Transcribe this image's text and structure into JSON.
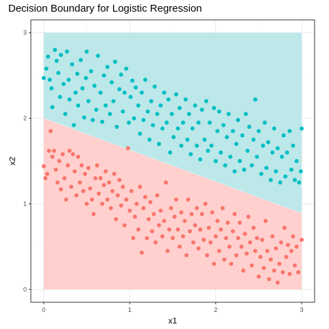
{
  "chart_data": {
    "type": "scatter",
    "title": "Decision Boundary for Logistic Regression",
    "xlabel": "x1",
    "ylabel": "x2",
    "xlim": [
      -0.15,
      3.15
    ],
    "ylim": [
      -0.15,
      3.15
    ],
    "x_ticks": [
      0,
      1,
      2,
      3
    ],
    "y_ticks": [
      0,
      1,
      2,
      3
    ],
    "grid": true,
    "legend": "none",
    "colors": {
      "class_0": "#f8766d",
      "class_1": "#00bfc4",
      "region_0": "#ffd0ce",
      "region_1": "#bce8ea",
      "panel_border": "#333333",
      "grid_major": "#ebebeb",
      "grid_minor": "#f5f5f5"
    },
    "boundary": {
      "intercept": 2.0,
      "slope": -0.37,
      "region_x": [
        0,
        3
      ],
      "region_y": [
        0,
        3
      ]
    },
    "series": [
      {
        "class": 1,
        "color": "#00bfc4",
        "points": [
          [
            0.0,
            2.47
          ],
          [
            0.03,
            2.58
          ],
          [
            0.05,
            2.72
          ],
          [
            0.07,
            2.45
          ],
          [
            0.09,
            2.35
          ],
          [
            0.1,
            2.13
          ],
          [
            0.13,
            2.8
          ],
          [
            0.15,
            2.67
          ],
          [
            0.17,
            2.53
          ],
          [
            0.19,
            2.25
          ],
          [
            0.2,
            2.74
          ],
          [
            0.23,
            2.4
          ],
          [
            0.25,
            2.05
          ],
          [
            0.27,
            2.78
          ],
          [
            0.29,
            2.45
          ],
          [
            0.3,
            2.22
          ],
          [
            0.33,
            2.63
          ],
          [
            0.35,
            1.92
          ],
          [
            0.37,
            2.3
          ],
          [
            0.39,
            2.52
          ],
          [
            0.4,
            2.15
          ],
          [
            0.43,
            2.68
          ],
          [
            0.45,
            2.35
          ],
          [
            0.47,
            2.01
          ],
          [
            0.49,
            2.47
          ],
          [
            0.5,
            2.78
          ],
          [
            0.52,
            2.2
          ],
          [
            0.55,
            2.55
          ],
          [
            0.57,
            1.98
          ],
          [
            0.59,
            2.38
          ],
          [
            0.61,
            2.1
          ],
          [
            0.63,
            2.73
          ],
          [
            0.66,
            2.3
          ],
          [
            0.68,
            1.96
          ],
          [
            0.7,
            2.5
          ],
          [
            0.72,
            2.15
          ],
          [
            0.74,
            2.6
          ],
          [
            0.77,
            2.05
          ],
          [
            0.79,
            2.42
          ],
          [
            0.81,
            2.2
          ],
          [
            0.83,
            2.66
          ],
          [
            0.85,
            1.9
          ],
          [
            0.88,
            2.34
          ],
          [
            0.9,
            2.51
          ],
          [
            0.92,
            2.08
          ],
          [
            0.94,
            2.3
          ],
          [
            0.96,
            2.58
          ],
          [
            0.99,
            1.95
          ],
          [
            1.01,
            2.25
          ],
          [
            1.03,
            2.44
          ],
          [
            1.05,
            2.0
          ],
          [
            1.07,
            2.36
          ],
          [
            1.1,
            2.15
          ],
          [
            1.12,
            1.82
          ],
          [
            1.14,
            2.3
          ],
          [
            1.16,
            1.98
          ],
          [
            1.18,
            2.45
          ],
          [
            1.21,
            2.08
          ],
          [
            1.23,
            1.75
          ],
          [
            1.25,
            2.2
          ],
          [
            1.27,
            1.92
          ],
          [
            1.29,
            2.37
          ],
          [
            1.32,
            2.05
          ],
          [
            1.34,
            1.7
          ],
          [
            1.36,
            2.15
          ],
          [
            1.38,
            1.88
          ],
          [
            1.4,
            2.3
          ],
          [
            1.43,
            1.95
          ],
          [
            1.45,
            2.22
          ],
          [
            1.47,
            1.6
          ],
          [
            1.49,
            2.05
          ],
          [
            1.51,
            1.78
          ],
          [
            1.54,
            2.28
          ],
          [
            1.56,
            1.88
          ],
          [
            1.58,
            2.12
          ],
          [
            1.6,
            1.68
          ],
          [
            1.62,
            1.95
          ],
          [
            1.65,
            2.22
          ],
          [
            1.67,
            1.75
          ],
          [
            1.69,
            2.05
          ],
          [
            1.71,
            1.58
          ],
          [
            1.73,
            1.88
          ],
          [
            1.76,
            2.15
          ],
          [
            1.78,
            1.68
          ],
          [
            1.8,
            1.95
          ],
          [
            1.82,
            1.52
          ],
          [
            1.84,
            2.1
          ],
          [
            1.87,
            1.75
          ],
          [
            1.89,
            2.2
          ],
          [
            1.91,
            1.62
          ],
          [
            1.93,
            1.95
          ],
          [
            1.95,
            1.68
          ],
          [
            1.98,
            2.12
          ],
          [
            2.0,
            1.5
          ],
          [
            2.02,
            1.85
          ],
          [
            2.04,
            2.08
          ],
          [
            2.06,
            1.6
          ],
          [
            2.09,
            1.92
          ],
          [
            2.11,
            1.45
          ],
          [
            2.13,
            1.78
          ],
          [
            2.15,
            2.05
          ],
          [
            2.17,
            1.55
          ],
          [
            2.2,
            1.85
          ],
          [
            2.22,
            1.38
          ],
          [
            2.24,
            1.7
          ],
          [
            2.26,
            1.98
          ],
          [
            2.28,
            1.5
          ],
          [
            2.31,
            1.8
          ],
          [
            2.33,
            1.4
          ],
          [
            2.35,
            2.05
          ],
          [
            2.37,
            1.62
          ],
          [
            2.39,
            1.9
          ],
          [
            2.42,
            1.45
          ],
          [
            2.44,
            1.75
          ],
          [
            2.46,
            2.22
          ],
          [
            2.48,
            1.55
          ],
          [
            2.5,
            1.85
          ],
          [
            2.53,
            1.35
          ],
          [
            2.55,
            1.68
          ],
          [
            2.57,
            1.95
          ],
          [
            2.59,
            1.42
          ],
          [
            2.61,
            1.72
          ],
          [
            2.64,
            1.28
          ],
          [
            2.66,
            1.6
          ],
          [
            2.68,
            1.88
          ],
          [
            2.7,
            1.38
          ],
          [
            2.72,
            1.65
          ],
          [
            2.75,
            1.25
          ],
          [
            2.77,
            1.55
          ],
          [
            2.79,
            1.8
          ],
          [
            2.81,
            1.32
          ],
          [
            2.83,
            1.6
          ],
          [
            2.86,
            1.85
          ],
          [
            2.88,
            1.4
          ],
          [
            2.9,
            1.68
          ],
          [
            2.92,
            1.28
          ],
          [
            2.94,
            1.5
          ],
          [
            2.97,
            1.25
          ],
          [
            2.99,
            1.38
          ],
          [
            3.0,
            1.88
          ]
        ]
      },
      {
        "class": 0,
        "color": "#f8766d",
        "points": [
          [
            0.0,
            1.44
          ],
          [
            0.02,
            1.3
          ],
          [
            0.04,
            1.35
          ],
          [
            0.06,
            1.62
          ],
          [
            0.08,
            1.85
          ],
          [
            0.1,
            1.55
          ],
          [
            0.12,
            1.62
          ],
          [
            0.14,
            1.4
          ],
          [
            0.16,
            1.25
          ],
          [
            0.18,
            1.5
          ],
          [
            0.2,
            1.17
          ],
          [
            0.22,
            1.58
          ],
          [
            0.24,
            1.3
          ],
          [
            0.26,
            1.05
          ],
          [
            0.28,
            1.45
          ],
          [
            0.3,
            1.62
          ],
          [
            0.32,
            1.2
          ],
          [
            0.34,
            1.58
          ],
          [
            0.36,
            1.38
          ],
          [
            0.38,
            1.1
          ],
          [
            0.4,
            1.55
          ],
          [
            0.42,
            1.25
          ],
          [
            0.44,
            1.45
          ],
          [
            0.46,
            1.15
          ],
          [
            0.48,
            1.35
          ],
          [
            0.5,
            1.0
          ],
          [
            0.52,
            1.42
          ],
          [
            0.54,
            1.18
          ],
          [
            0.56,
            1.05
          ],
          [
            0.58,
            0.88
          ],
          [
            0.6,
            1.3
          ],
          [
            0.62,
            1.45
          ],
          [
            0.64,
            1.12
          ],
          [
            0.66,
            1.3
          ],
          [
            0.68,
            1.0
          ],
          [
            0.7,
            1.22
          ],
          [
            0.72,
            1.38
          ],
          [
            0.74,
            1.05
          ],
          [
            0.76,
            1.25
          ],
          [
            0.78,
            0.95
          ],
          [
            0.8,
            1.15
          ],
          [
            0.82,
            1.35
          ],
          [
            0.84,
            0.82
          ],
          [
            0.86,
            1.1
          ],
          [
            0.88,
            1.28
          ],
          [
            0.9,
            0.98
          ],
          [
            0.92,
            1.2
          ],
          [
            0.94,
            0.75
          ],
          [
            0.96,
            1.05
          ],
          [
            0.98,
            1.65
          ],
          [
            1.0,
            0.92
          ],
          [
            1.02,
            1.15
          ],
          [
            1.04,
            0.6
          ],
          [
            1.06,
            0.85
          ],
          [
            1.08,
            1.0
          ],
          [
            1.1,
            0.7
          ],
          [
            1.12,
            1.2
          ],
          [
            1.14,
            0.43
          ],
          [
            1.16,
            0.95
          ],
          [
            1.18,
            1.08
          ],
          [
            1.2,
            0.6
          ],
          [
            1.22,
            0.82
          ],
          [
            1.24,
            1.02
          ],
          [
            1.26,
            0.68
          ],
          [
            1.28,
            0.88
          ],
          [
            1.3,
            0.55
          ],
          [
            1.32,
            1.1
          ],
          [
            1.34,
            0.75
          ],
          [
            1.36,
            0.92
          ],
          [
            1.38,
            0.62
          ],
          [
            1.4,
            0.8
          ],
          [
            1.42,
            1.25
          ],
          [
            1.44,
            0.45
          ],
          [
            1.46,
            0.7
          ],
          [
            1.48,
            0.95
          ],
          [
            1.5,
            0.6
          ],
          [
            1.52,
            0.85
          ],
          [
            1.54,
            1.05
          ],
          [
            1.56,
            0.7
          ],
          [
            1.58,
            0.5
          ],
          [
            1.6,
            0.9
          ],
          [
            1.62,
            0.62
          ],
          [
            1.64,
            0.8
          ],
          [
            1.66,
            0.4
          ],
          [
            1.68,
            1.05
          ],
          [
            1.7,
            0.68
          ],
          [
            1.72,
            0.88
          ],
          [
            1.74,
            0.55
          ],
          [
            1.76,
            0.75
          ],
          [
            1.78,
            0.95
          ],
          [
            1.8,
            0.48
          ],
          [
            1.82,
            0.7
          ],
          [
            1.84,
            0.88
          ],
          [
            1.86,
            0.58
          ],
          [
            1.88,
            1.0
          ],
          [
            1.9,
            0.4
          ],
          [
            1.92,
            0.72
          ],
          [
            1.94,
            0.55
          ],
          [
            1.96,
            0.9
          ],
          [
            1.98,
            0.3
          ],
          [
            2.0,
            0.62
          ],
          [
            2.02,
            0.8
          ],
          [
            2.04,
            0.45
          ],
          [
            2.06,
            0.7
          ],
          [
            2.08,
            0.95
          ],
          [
            2.1,
            0.35
          ],
          [
            2.12,
            0.6
          ],
          [
            2.14,
            0.78
          ],
          [
            2.16,
            0.5
          ],
          [
            2.18,
            0.3
          ],
          [
            2.2,
            0.68
          ],
          [
            2.22,
            0.88
          ],
          [
            2.24,
            0.4
          ],
          [
            2.26,
            0.6
          ],
          [
            2.28,
            0.78
          ],
          [
            2.3,
            0.5
          ],
          [
            2.32,
            0.22
          ],
          [
            2.34,
            0.65
          ],
          [
            2.36,
            0.42
          ],
          [
            2.38,
            0.85
          ],
          [
            2.4,
            0.55
          ],
          [
            2.42,
            0.28
          ],
          [
            2.44,
            0.72
          ],
          [
            2.46,
            0.45
          ],
          [
            2.48,
            0.6
          ],
          [
            2.5,
            0.15
          ],
          [
            2.52,
            0.38
          ],
          [
            2.54,
            0.58
          ],
          [
            2.56,
            0.25
          ],
          [
            2.58,
            0.8
          ],
          [
            2.6,
            0.45
          ],
          [
            2.62,
            0.12
          ],
          [
            2.64,
            0.35
          ],
          [
            2.66,
            0.62
          ],
          [
            2.68,
            0.22
          ],
          [
            2.7,
            0.48
          ],
          [
            2.72,
            0.08
          ],
          [
            2.74,
            0.3
          ],
          [
            2.76,
            0.55
          ],
          [
            2.78,
            0.2
          ],
          [
            2.8,
            0.72
          ],
          [
            2.82,
            0.38
          ],
          [
            2.84,
            0.52
          ],
          [
            2.86,
            0.18
          ],
          [
            2.88,
            0.45
          ],
          [
            2.9,
            0.62
          ],
          [
            2.92,
            0.28
          ],
          [
            2.94,
            0.5
          ],
          [
            2.96,
            0.2
          ],
          [
            3.0,
            0.58
          ]
        ]
      }
    ]
  }
}
